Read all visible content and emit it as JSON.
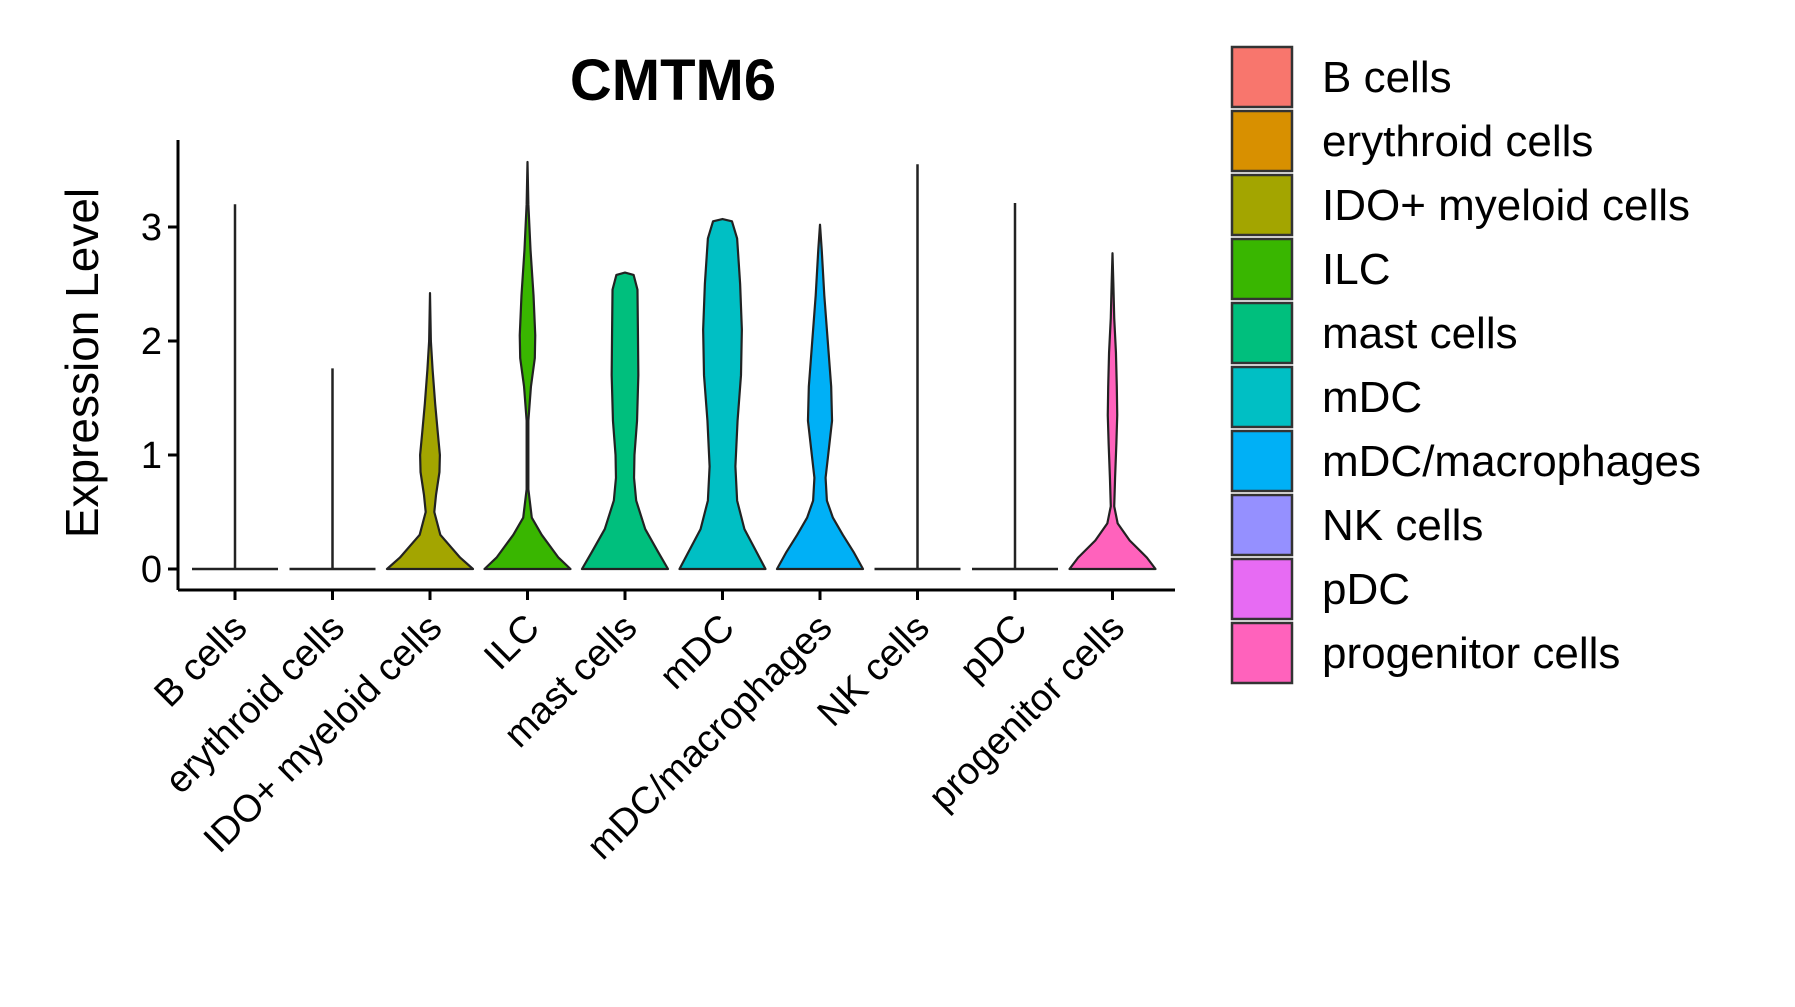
{
  "chart_data": {
    "type": "violin",
    "title": "CMTM6",
    "xlabel": "",
    "ylabel": "Expression Level",
    "ylim": [
      -0.2,
      3.8
    ],
    "yticks": [
      0,
      1,
      2,
      3
    ],
    "grid": false,
    "legend_position": "right",
    "categories": [
      "B cells",
      "erythroid cells",
      "IDO+ myeloid cells",
      "ILC",
      "mast cells",
      "mDC",
      "mDC/macrophages",
      "NK cells",
      "pDC",
      "progenitor cells"
    ],
    "colors": [
      "#F8766D",
      "#D89000",
      "#A3A500",
      "#39B600",
      "#00BF7D",
      "#00BFC4",
      "#00B0F6",
      "#9590FF",
      "#E76BF3",
      "#FF62BC"
    ],
    "max_values": [
      3.2,
      1.76,
      2.42,
      3.57,
      2.6,
      3.07,
      3.02,
      3.55,
      3.21,
      2.77
    ],
    "violins": [
      {
        "name": "B cells",
        "profile": [
          [
            0.0,
            1.0
          ]
        ]
      },
      {
        "name": "erythroid cells",
        "profile": [
          [
            0.0,
            1.0
          ]
        ]
      },
      {
        "name": "IDO+ myeloid cells",
        "profile": [
          [
            0.0,
            1.0
          ],
          [
            0.1,
            0.7
          ],
          [
            0.3,
            0.24
          ],
          [
            0.5,
            0.1
          ],
          [
            0.65,
            0.14
          ],
          [
            0.85,
            0.22
          ],
          [
            1.0,
            0.23
          ],
          [
            1.2,
            0.18
          ],
          [
            1.45,
            0.12
          ],
          [
            1.75,
            0.06
          ],
          [
            2.0,
            0.02
          ],
          [
            2.42,
            0.0
          ]
        ]
      },
      {
        "name": "ILC",
        "profile": [
          [
            0.0,
            1.0
          ],
          [
            0.1,
            0.72
          ],
          [
            0.3,
            0.33
          ],
          [
            0.45,
            0.1
          ],
          [
            0.7,
            0.02
          ],
          [
            1.3,
            0.02
          ],
          [
            1.6,
            0.08
          ],
          [
            1.85,
            0.17
          ],
          [
            2.05,
            0.18
          ],
          [
            2.4,
            0.14
          ],
          [
            2.8,
            0.07
          ],
          [
            3.2,
            0.02
          ],
          [
            3.57,
            0.0
          ]
        ]
      },
      {
        "name": "mast cells",
        "profile": [
          [
            0.0,
            1.0
          ],
          [
            0.15,
            0.77
          ],
          [
            0.35,
            0.47
          ],
          [
            0.6,
            0.26
          ],
          [
            0.8,
            0.21
          ],
          [
            1.0,
            0.22
          ],
          [
            1.3,
            0.28
          ],
          [
            1.7,
            0.31
          ],
          [
            2.1,
            0.3
          ],
          [
            2.45,
            0.29
          ],
          [
            2.58,
            0.2
          ],
          [
            2.6,
            0.0
          ]
        ]
      },
      {
        "name": "mDC",
        "profile": [
          [
            0.0,
            1.0
          ],
          [
            0.15,
            0.79
          ],
          [
            0.35,
            0.51
          ],
          [
            0.6,
            0.34
          ],
          [
            0.9,
            0.3
          ],
          [
            1.3,
            0.35
          ],
          [
            1.7,
            0.43
          ],
          [
            2.1,
            0.45
          ],
          [
            2.5,
            0.41
          ],
          [
            2.9,
            0.34
          ],
          [
            3.05,
            0.22
          ],
          [
            3.07,
            0.0
          ]
        ]
      },
      {
        "name": "mDC/macrophages",
        "profile": [
          [
            0.0,
            1.0
          ],
          [
            0.15,
            0.78
          ],
          [
            0.3,
            0.53
          ],
          [
            0.45,
            0.3
          ],
          [
            0.6,
            0.16
          ],
          [
            0.8,
            0.13
          ],
          [
            1.0,
            0.19
          ],
          [
            1.3,
            0.28
          ],
          [
            1.6,
            0.26
          ],
          [
            2.0,
            0.18
          ],
          [
            2.4,
            0.1
          ],
          [
            2.8,
            0.04
          ],
          [
            3.02,
            0.0
          ]
        ]
      },
      {
        "name": "NK cells",
        "profile": [
          [
            0.0,
            1.0
          ]
        ]
      },
      {
        "name": "pDC",
        "profile": [
          [
            0.0,
            1.0
          ]
        ]
      },
      {
        "name": "progenitor cells",
        "profile": [
          [
            0.0,
            1.0
          ],
          [
            0.1,
            0.8
          ],
          [
            0.25,
            0.4
          ],
          [
            0.4,
            0.12
          ],
          [
            0.55,
            0.04
          ],
          [
            0.8,
            0.06
          ],
          [
            1.1,
            0.09
          ],
          [
            1.35,
            0.11
          ],
          [
            1.6,
            0.1
          ],
          [
            1.9,
            0.08
          ],
          [
            2.2,
            0.04
          ],
          [
            2.5,
            0.02
          ],
          [
            2.77,
            0.0
          ]
        ]
      }
    ]
  }
}
